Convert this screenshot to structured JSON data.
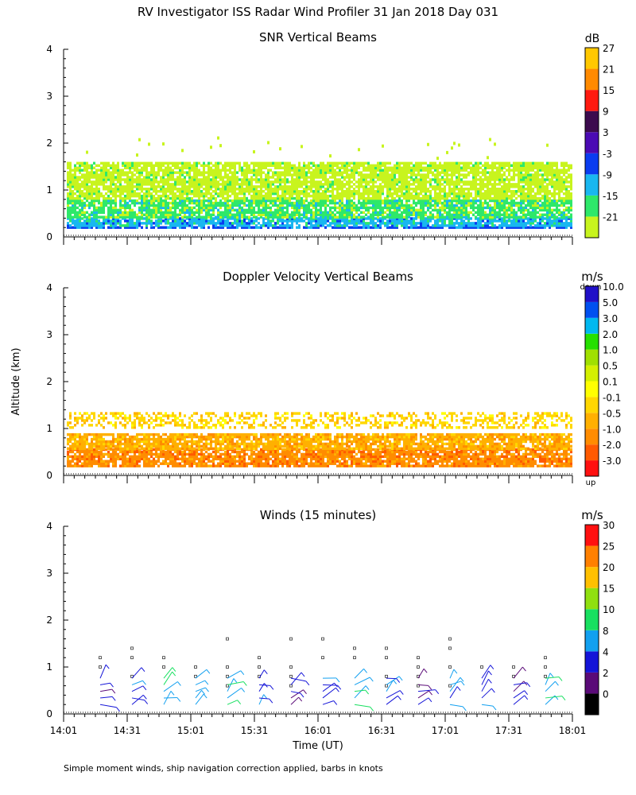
{
  "title": "RV Investigator ISS Radar Wind Profiler  31 Jan 2018 Day 031",
  "ylabel": "Altitude (km)",
  "xlabel": "Time (UT)",
  "footer": "Simple moment winds, ship navigation correction applied, barbs in knots",
  "colors": {
    "snr": [
      "#c8f41e",
      "#2ee86a",
      "#19b7f0",
      "#0a3cf0",
      "#4b0ab4",
      "#3c0b4e",
      "#ff1a10",
      "#ff8a00",
      "#ffc800"
    ],
    "velocity": [
      "#ff1010",
      "#ff5a00",
      "#ff8c00",
      "#ffb000",
      "#ffd700",
      "#ffff00",
      "#d4f000",
      "#a0e000",
      "#26e000",
      "#00b8f0",
      "#0050f0",
      "#2010c8",
      "#5a0aa0",
      "#2a0838"
    ],
    "wind": [
      "#000000",
      "#5a0a78",
      "#1414d8",
      "#12a0f0",
      "#18e060",
      "#90e010",
      "#ffc000",
      "#ff8000",
      "#ff1010"
    ]
  },
  "chart_data": [
    {
      "type": "heatmap",
      "title": "SNR Vertical Beams",
      "unit": "dB",
      "xlim": [
        "14:01",
        "18:01"
      ],
      "ylim": [
        0,
        4
      ],
      "ticks_y": [
        "0",
        "1",
        "2",
        "3",
        "4"
      ],
      "colorbar_labels": [
        "-21",
        "-15",
        "-9",
        "-3",
        "3",
        "9",
        "15",
        "21",
        "27"
      ],
      "layers": [
        {
          "bottom": 0.18,
          "top": 0.22,
          "level": 3
        },
        {
          "bottom": 0.22,
          "top": 0.4,
          "level": 2
        },
        {
          "bottom": 0.4,
          "top": 0.8,
          "level": 1
        },
        {
          "bottom": 0.8,
          "top": 1.6,
          "level": 0
        }
      ]
    },
    {
      "type": "heatmap",
      "title": "Doppler Velocity Vertical Beams",
      "unit": "m/s",
      "xlim": [
        "14:01",
        "18:01"
      ],
      "ylim": [
        0,
        4
      ],
      "ticks_y": [
        "0",
        "1",
        "2",
        "3",
        "4"
      ],
      "colorbar_top": "down",
      "colorbar_bottom": "up",
      "colorbar_labels": [
        "-3.0",
        "-2.0",
        "-1.0",
        "-0.5",
        "-0.1",
        "0.1",
        "0.5",
        "1.0",
        "2.0",
        "3.0",
        "5.0",
        "10.0"
      ],
      "layers": [
        {
          "bottom": 0.18,
          "top": 0.55,
          "level": 2
        },
        {
          "bottom": 0.55,
          "top": 0.9,
          "level": 3
        },
        {
          "bottom": 1.0,
          "top": 1.35,
          "level": 4
        }
      ]
    },
    {
      "type": "wind-barbs",
      "title": "Winds (15 minutes)",
      "unit": "m/s",
      "xlim": [
        "14:01",
        "18:01"
      ],
      "ylim": [
        0,
        4
      ],
      "ticks_y": [
        "0",
        "1",
        "2",
        "3",
        "4"
      ],
      "ticks_x": [
        "14:01",
        "14:31",
        "15:01",
        "15:31",
        "16:01",
        "16:31",
        "17:01",
        "17:31",
        "18:01"
      ],
      "colorbar_labels": [
        "0",
        "2",
        "4",
        "8",
        "10",
        "15",
        "20",
        "25",
        "30"
      ],
      "profile_times_min": [
        15,
        30,
        45,
        60,
        75,
        90,
        105,
        120,
        135,
        150,
        165,
        180,
        195,
        210,
        225
      ],
      "wind_speeds": [
        2,
        3,
        5,
        4,
        6,
        3,
        2,
        4,
        5,
        3,
        2,
        4,
        3,
        2,
        5
      ]
    }
  ]
}
